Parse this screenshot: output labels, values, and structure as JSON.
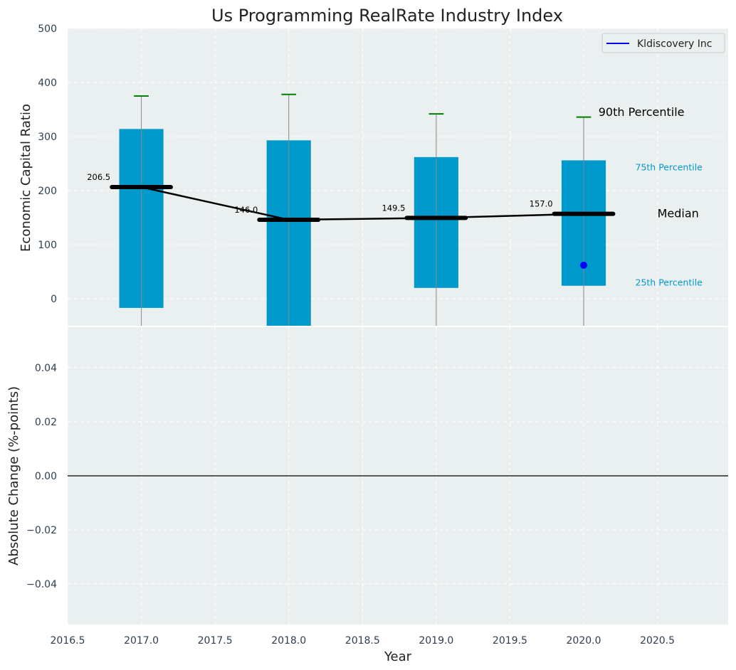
{
  "title": "Us Programming RealRate Industry Index",
  "colors": {
    "box": "#0099cc",
    "whisker": "#888888",
    "cap": "#008000",
    "median": "#000000",
    "company": "#0000ff",
    "plot_bg": "#eaeff0",
    "grid": "#ffffff",
    "tick_text": "#2d3e50",
    "pct_small_text": "#0099cc"
  },
  "chart_data": [
    {
      "type": "box",
      "ylabel": "Economic Capital Ratio",
      "ylim": [
        -50,
        500
      ],
      "yticks": [
        0,
        100,
        200,
        300,
        400,
        500
      ],
      "ytick_labels": [
        "0",
        "100",
        "200",
        "300",
        "400",
        "500"
      ],
      "xlim": [
        2016.5,
        2020.98
      ],
      "grid": true,
      "legend": {
        "placement": "top-right",
        "entries": [
          {
            "name": "Kldiscovery Inc",
            "color": "#0000ff"
          }
        ]
      },
      "boxes": [
        {
          "x": 2017,
          "q25": -17,
          "median": 206.5,
          "q75": 314,
          "p90": 375,
          "lower": -50
        },
        {
          "x": 2018,
          "q25": -50,
          "median": 146.0,
          "q75": 293,
          "p90": 378,
          "lower": -50
        },
        {
          "x": 2019,
          "q25": 20,
          "median": 149.5,
          "q75": 262,
          "p90": 342,
          "lower": -50
        },
        {
          "x": 2020,
          "q25": 24,
          "median": 157.0,
          "q75": 256,
          "p90": 336,
          "lower": -50
        }
      ],
      "median_labels": [
        "206.5",
        "146.0",
        "149.5",
        "157.0"
      ],
      "median_line": {
        "x": [
          2017,
          2018,
          2019,
          2020
        ],
        "y": [
          206.5,
          146.0,
          149.5,
          157.0
        ]
      },
      "company_points": [
        {
          "x": 2020,
          "y": 62
        }
      ],
      "annotations": [
        {
          "text": "90th Percentile",
          "x": 2020.1,
          "y": 345,
          "style": "big"
        },
        {
          "text": "75th Percentile",
          "x": 2020.35,
          "y": 244,
          "style": "small"
        },
        {
          "text": "Median",
          "x": 2020.5,
          "y": 157,
          "style": "big"
        },
        {
          "text": "25th Percentile",
          "x": 2020.35,
          "y": 31,
          "style": "small"
        }
      ]
    },
    {
      "type": "line",
      "xlabel": "Year",
      "ylabel": "Absolute Change (%-points)",
      "ylim": [
        -0.055,
        0.055
      ],
      "yticks": [
        -0.04,
        -0.02,
        0.0,
        0.02,
        0.04
      ],
      "ytick_labels": [
        "−0.04",
        "−0.02",
        "0.00",
        "0.02",
        "0.04"
      ],
      "xlim": [
        2016.5,
        2020.98
      ],
      "xticks": [
        2016.5,
        2017.0,
        2017.5,
        2018.0,
        2018.5,
        2019.0,
        2019.5,
        2020.0,
        2020.5
      ],
      "xtick_labels": [
        "2016.5",
        "2017.0",
        "2017.5",
        "2018.0",
        "2018.5",
        "2019.0",
        "2019.5",
        "2020.0",
        "2020.5"
      ],
      "zero_line": 0,
      "grid": true
    }
  ]
}
